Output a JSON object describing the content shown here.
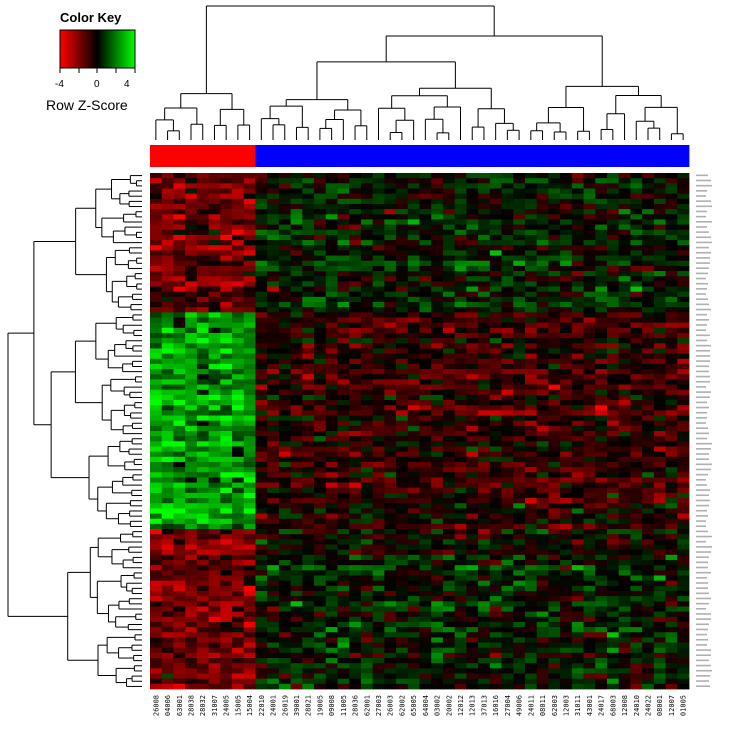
{
  "colors": {
    "low": "#ff0000",
    "mid": "#000000",
    "high": "#00ff00",
    "group_a": "#ff0000",
    "group_b": "#0000ff"
  },
  "color_key": {
    "title": "Color Key",
    "label": "Row Z-Score",
    "ticks": [
      "-4",
      "0",
      "4"
    ],
    "range": [
      -4,
      4
    ]
  },
  "chart_data": {
    "type": "heatmap",
    "title": "",
    "scale": "row z-score",
    "column_labels": [
      "26008",
      "04006",
      "63001",
      "28038",
      "28032",
      "31007",
      "24005",
      "15005",
      "15004",
      "22010",
      "24001",
      "26019",
      "39001",
      "28021",
      "19005",
      "09008",
      "11005",
      "28036",
      "62001",
      "27003",
      "26003",
      "62002",
      "65005",
      "64004",
      "03002",
      "20002",
      "12012",
      "12013",
      "37013",
      "16016",
      "27004",
      "49006",
      "24011",
      "08011",
      "62003",
      "12003",
      "31011",
      "43001",
      "24017",
      "68003",
      "12008",
      "24010",
      "24022",
      "08001",
      "12007",
      "01005"
    ],
    "column_groups": [
      "A",
      "A",
      "A",
      "A",
      "A",
      "A",
      "A",
      "A",
      "A",
      "B",
      "B",
      "B",
      "B",
      "B",
      "B",
      "B",
      "B",
      "B",
      "B",
      "B",
      "B",
      "B",
      "B",
      "B",
      "B",
      "B",
      "B",
      "B",
      "B",
      "B",
      "B",
      "B",
      "B",
      "B",
      "B",
      "B",
      "B",
      "B",
      "B",
      "B",
      "B",
      "B",
      "B",
      "B",
      "B",
      "B"
    ],
    "row_clusters": [
      {
        "name": "",
        "rows": 27,
        "group_a_mean": -1.6,
        "group_b_mean": 0.3
      },
      {
        "name": "",
        "rows": 42,
        "group_a_mean": 2.4,
        "group_b_mean": -0.8
      },
      {
        "name": "",
        "rows": 31,
        "group_a_mean": -1.8,
        "group_b_mean": 0.3
      }
    ],
    "row_count": 100,
    "column_dendrogram": true,
    "row_dendrogram": true,
    "legend_position": "top-left"
  }
}
